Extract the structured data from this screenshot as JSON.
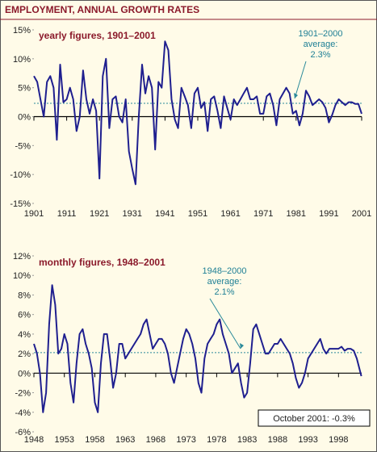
{
  "title": "EMPLOYMENT, ANNUAL GROWTH RATES",
  "chart_data": [
    {
      "type": "line",
      "title": "yearly figures, 1901–2001",
      "x": [
        1901,
        1902,
        1903,
        1904,
        1905,
        1906,
        1907,
        1908,
        1909,
        1910,
        1911,
        1912,
        1913,
        1914,
        1915,
        1916,
        1917,
        1918,
        1919,
        1920,
        1921,
        1922,
        1923,
        1924,
        1925,
        1926,
        1927,
        1928,
        1929,
        1930,
        1931,
        1932,
        1933,
        1934,
        1935,
        1936,
        1937,
        1938,
        1939,
        1940,
        1941,
        1942,
        1943,
        1944,
        1945,
        1946,
        1947,
        1948,
        1949,
        1950,
        1951,
        1952,
        1953,
        1954,
        1955,
        1956,
        1957,
        1958,
        1959,
        1960,
        1961,
        1962,
        1963,
        1964,
        1965,
        1966,
        1967,
        1968,
        1969,
        1970,
        1971,
        1972,
        1973,
        1974,
        1975,
        1976,
        1977,
        1978,
        1979,
        1980,
        1981,
        1982,
        1983,
        1984,
        1985,
        1986,
        1987,
        1988,
        1989,
        1990,
        1991,
        1992,
        1993,
        1994,
        1995,
        1996,
        1997,
        1998,
        1999,
        2000,
        2001
      ],
      "series": [
        {
          "color": "#1f1f8f",
          "values": [
            7,
            6,
            3,
            0,
            6,
            7,
            5,
            -4,
            9,
            2.5,
            3,
            5,
            3,
            -2.5,
            0,
            8,
            3,
            0.5,
            3,
            1,
            -10.7,
            7,
            10,
            -2,
            3,
            3.5,
            0,
            -1,
            3,
            -6,
            -9,
            -11.7,
            0,
            9,
            4,
            7,
            5,
            -5.7,
            6,
            5,
            13,
            11.5,
            3,
            -0.5,
            -2,
            5,
            3.5,
            2,
            -2,
            4,
            5,
            1.5,
            2.5,
            -2.5,
            3,
            3.5,
            1,
            -2,
            3.5,
            1.5,
            -0.5,
            3,
            2,
            3,
            4,
            5,
            3,
            3,
            3.5,
            0.5,
            0.5,
            3.5,
            4,
            2,
            -1.5,
            3,
            4,
            5,
            4,
            0.5,
            1,
            -1.5,
            0.5,
            4.5,
            3.5,
            2,
            2.5,
            3,
            2.5,
            1.5,
            -1,
            0.3,
            2,
            3,
            2.5,
            2,
            2.5,
            2.5,
            2.2,
            2.2,
            0.5
          ]
        }
      ],
      "average": 2.3,
      "average_color": "#2a8a9a",
      "annotation": [
        "1901–2000",
        "average:",
        "2.3%"
      ],
      "xlim": [
        1901,
        2001
      ],
      "xticks": [
        1901,
        1911,
        1921,
        1931,
        1941,
        1951,
        1961,
        1971,
        1981,
        1991,
        2001
      ],
      "ylim": [
        -15,
        15
      ],
      "yticks": [
        {
          "value": -15,
          "label": "-15%"
        },
        {
          "value": -10,
          "label": "-10%"
        },
        {
          "value": -5,
          "label": "-5%"
        },
        {
          "value": 0,
          "label": "0%"
        },
        {
          "value": 5,
          "label": "5%"
        },
        {
          "value": 10,
          "label": "10%"
        },
        {
          "value": 15,
          "label": "15%"
        }
      ]
    },
    {
      "type": "line",
      "title": "monthly figures, 1948–2001",
      "x": [
        1948,
        1948.5,
        1949,
        1949.5,
        1950,
        1950.5,
        1951,
        1951.5,
        1952,
        1952.5,
        1953,
        1953.5,
        1954,
        1954.5,
        1955,
        1955.5,
        1956,
        1956.5,
        1957,
        1957.5,
        1958,
        1958.5,
        1959,
        1959.5,
        1960,
        1960.5,
        1961,
        1961.5,
        1962,
        1962.5,
        1963,
        1963.5,
        1964,
        1964.5,
        1965,
        1965.5,
        1966,
        1966.5,
        1967,
        1967.5,
        1968,
        1968.5,
        1969,
        1969.5,
        1970,
        1970.5,
        1971,
        1971.5,
        1972,
        1972.5,
        1973,
        1973.5,
        1974,
        1974.5,
        1975,
        1975.5,
        1976,
        1976.5,
        1977,
        1977.5,
        1978,
        1978.5,
        1979,
        1979.5,
        1980,
        1980.5,
        1981,
        1981.5,
        1982,
        1982.5,
        1983,
        1983.5,
        1984,
        1984.5,
        1985,
        1985.5,
        1986,
        1986.5,
        1987,
        1987.5,
        1988,
        1988.5,
        1989,
        1989.5,
        1990,
        1990.5,
        1991,
        1991.5,
        1992,
        1992.5,
        1993,
        1993.5,
        1994,
        1994.5,
        1995,
        1995.5,
        1996,
        1996.5,
        1997,
        1997.5,
        1998,
        1998.5,
        1999,
        1999.5,
        2000,
        2000.5,
        2001,
        2001.75
      ],
      "series": [
        {
          "color": "#1f1f8f",
          "values": [
            3,
            2,
            0,
            -4,
            -2,
            5,
            9,
            7,
            2,
            2.5,
            4,
            3,
            -1,
            -3,
            1,
            4,
            4.5,
            3,
            2,
            0.5,
            -3,
            -4,
            1,
            4,
            4,
            1.5,
            -1.5,
            0,
            3,
            3,
            1.5,
            2,
            2.5,
            3,
            3.5,
            4,
            5,
            5.5,
            4,
            2.5,
            3,
            3.5,
            3.5,
            3,
            2,
            0,
            -1,
            0.5,
            2,
            3.5,
            4.5,
            4,
            3,
            1.5,
            -1,
            -2,
            1.5,
            3,
            3.5,
            4,
            5,
            5.5,
            4,
            3,
            2,
            0,
            0.5,
            1,
            -1,
            -2.5,
            -2,
            1,
            4.5,
            5,
            4,
            3,
            2,
            2,
            2.5,
            3,
            3,
            3.5,
            3,
            2.5,
            2,
            1,
            -0.5,
            -1.5,
            -1,
            0,
            1.5,
            2,
            2.5,
            3,
            3.5,
            2.5,
            2,
            2.5,
            2.5,
            2.5,
            2.5,
            2.7,
            2.3,
            2.5,
            2.5,
            2.3,
            1.5,
            -0.3
          ]
        }
      ],
      "average": 2.1,
      "average_color": "#2a8a9a",
      "annotation": [
        "1948–2000",
        "average:",
        "2.1%"
      ],
      "note": "October 2001: -0.3%",
      "xlim": [
        1948,
        2001.8
      ],
      "xticks": [
        1948,
        1953,
        1958,
        1963,
        1968,
        1973,
        1978,
        1983,
        1988,
        1993,
        1998
      ],
      "ylim": [
        -6,
        12
      ],
      "yticks": [
        {
          "value": -6,
          "label": "-6%"
        },
        {
          "value": -4,
          "label": "-4%"
        },
        {
          "value": -2,
          "label": "-2%"
        },
        {
          "value": 0,
          "label": "0%"
        },
        {
          "value": 2,
          "label": "2%"
        },
        {
          "value": 4,
          "label": "4%"
        },
        {
          "value": 6,
          "label": "6%"
        },
        {
          "value": 8,
          "label": "8%"
        },
        {
          "value": 10,
          "label": "10%"
        },
        {
          "value": 12,
          "label": "12%"
        }
      ]
    }
  ]
}
